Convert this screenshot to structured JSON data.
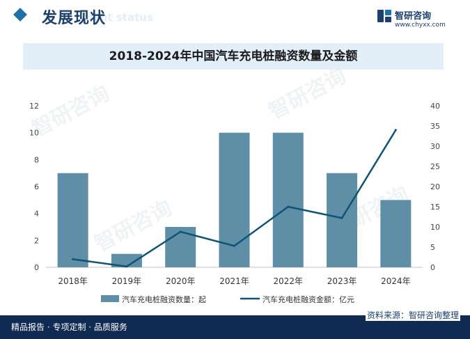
{
  "header": {
    "section_title": "发展现状",
    "section_subtitle": "ment status",
    "brand_name": "智研咨询",
    "brand_url": "www.chyxx.com"
  },
  "watermark": "智研咨询",
  "footer": {
    "left_text": "精品报告 · 专项定制 · 品质服务",
    "source": "资料来源：智研咨询整理"
  },
  "colors": {
    "bar": "#5f8fa7",
    "line": "#0e5473",
    "footer_bg": "#0f2b52",
    "title_band": "#e3eff8"
  },
  "chart_data": {
    "type": "bar",
    "title": "2018-2024年中国汽车充电桩融资数量及金额",
    "categories": [
      "2018年",
      "2019年",
      "2020年",
      "2021年",
      "2022年",
      "2023年",
      "2024年"
    ],
    "series": [
      {
        "name": "汽车充电桩融资数量：起",
        "type": "bar",
        "axis": "left",
        "values": [
          7,
          1,
          3,
          10,
          10,
          7,
          5
        ]
      },
      {
        "name": "汽车充电桩融资金额：亿元",
        "type": "line",
        "axis": "right",
        "values": [
          2,
          0.2,
          8.8,
          5.3,
          15,
          12.2,
          34
        ]
      }
    ],
    "y_left": {
      "min": 0,
      "max": 12,
      "ticks": [
        0,
        2,
        4,
        6,
        8,
        10,
        12
      ]
    },
    "y_right": {
      "min": 0,
      "max": 40,
      "ticks": [
        0,
        5,
        10,
        15,
        20,
        25,
        30,
        35,
        40
      ]
    },
    "grid": false,
    "legend_position": "bottom"
  }
}
